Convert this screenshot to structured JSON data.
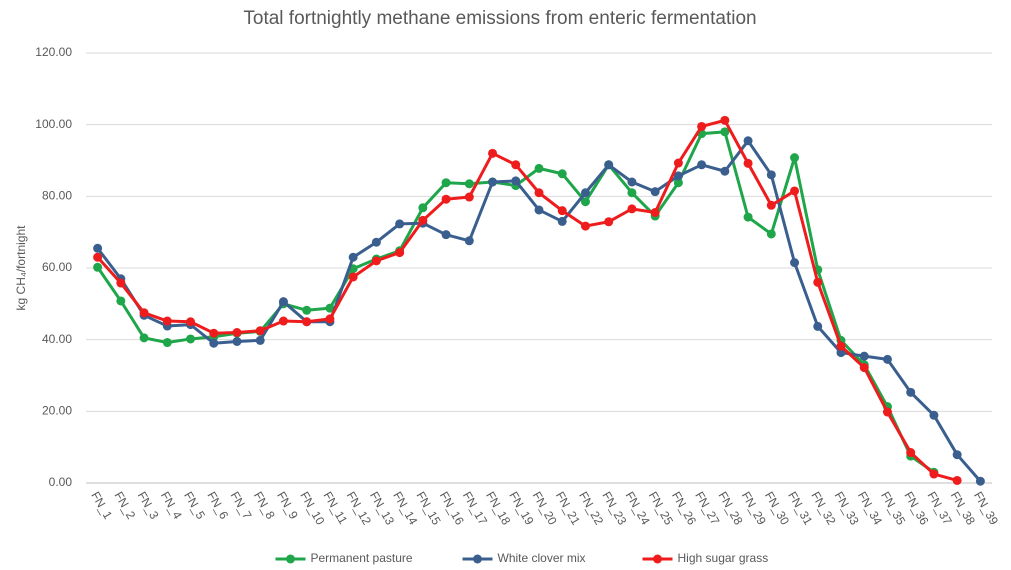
{
  "chart_data": {
    "type": "line",
    "title": "Total fortnightly methane emissions from enteric fermentation",
    "y_label": "kg CH₄/fortnight",
    "categories": [
      "FN_1",
      "FN_2",
      "FN_3",
      "FN_4",
      "FN_5",
      "FN_6",
      "FN_7",
      "FN_8",
      "FN_9",
      "FN_10",
      "FN_11",
      "FN_12",
      "FN_13",
      "FN_14",
      "FN_15",
      "FN_16",
      "FN_17",
      "FN_18",
      "FN_19",
      "FN_20",
      "FN_21",
      "FN_22",
      "FN_23",
      "FN_24",
      "FN_25",
      "FN_26",
      "FN_27",
      "FN_28",
      "FN_29",
      "FN_30",
      "FN_31",
      "FN_32",
      "FN_33",
      "FN_34",
      "FN_35",
      "FN_36",
      "FN_37",
      "FN_38",
      "FN_39"
    ],
    "series": [
      {
        "name": "Permanent pasture",
        "color": "#1fa64a",
        "values": [
          60.2,
          50.8,
          40.5,
          39.2,
          40.2,
          40.8,
          41.8,
          42.3,
          50,
          48.2,
          48.8,
          59.8,
          62.5,
          64.8,
          76.8,
          83.8,
          83.5,
          84,
          83,
          87.8,
          86.3,
          78.5,
          88.8,
          81,
          74.5,
          83.8,
          97.5,
          98,
          74.2,
          69.5,
          90.8,
          59.5,
          39.8,
          33,
          21.3,
          7.5,
          3,
          null,
          null
        ]
      },
      {
        "name": "White clover mix",
        "color": "#3a5f8f",
        "values": [
          65.5,
          57,
          46.8,
          43.8,
          44.2,
          39,
          39.5,
          39.8,
          50.6,
          45,
          45,
          63,
          67.2,
          72.3,
          72.5,
          69.3,
          67.6,
          84,
          84.3,
          76.2,
          73,
          81,
          88.8,
          84,
          81.3,
          85.7,
          88.8,
          87,
          95.5,
          86,
          61.5,
          43.7,
          36.4,
          35.4,
          34.5,
          25.3,
          18.9,
          7.9,
          0.5
        ]
      },
      {
        "name": "High sugar grass",
        "color": "#ee1c1c",
        "values": [
          63,
          55.8,
          47.5,
          45.2,
          45,
          41.8,
          42,
          42.5,
          45.2,
          45,
          45.8,
          57.5,
          62,
          64.3,
          73.3,
          79.2,
          79.8,
          92,
          88.8,
          81,
          76,
          71.7,
          72.9,
          76.5,
          75.5,
          89.3,
          99.5,
          101.2,
          89.2,
          77.5,
          81.5,
          56,
          38.2,
          32.2,
          19.8,
          8.5,
          2.5,
          0.7,
          null
        ]
      }
    ],
    "ylim": [
      0,
      120
    ],
    "yticks": [
      {
        "value": 0,
        "label": "0.00"
      },
      {
        "value": 20,
        "label": "20.00"
      },
      {
        "value": 40,
        "label": "40.00"
      },
      {
        "value": 60,
        "label": "60.00"
      },
      {
        "value": 80,
        "label": "80.00"
      },
      {
        "value": 100,
        "label": "100.00"
      },
      {
        "value": 120,
        "label": "120.00"
      }
    ],
    "grid": true,
    "legend": "bottom"
  }
}
